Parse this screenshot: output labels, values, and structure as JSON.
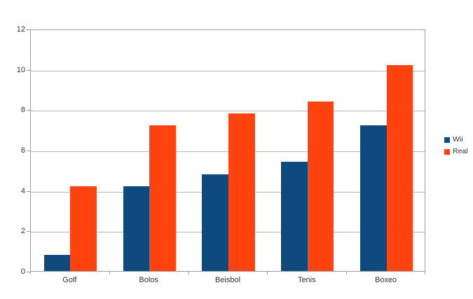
{
  "chart_data": {
    "type": "bar",
    "title": "",
    "xlabel": "",
    "ylabel": "",
    "categories": [
      "Golf",
      "Bolos",
      "Beisbol",
      "Tenis",
      "Boxeo"
    ],
    "series": [
      {
        "name": "Wii",
        "color": "#0f4a7f",
        "values": [
          0.8,
          4.2,
          4.8,
          5.4,
          7.2
        ]
      },
      {
        "name": "Real",
        "color": "#ff420e",
        "values": [
          4.2,
          7.2,
          7.8,
          8.4,
          10.2
        ]
      }
    ],
    "ylim": [
      0,
      12
    ],
    "ytick_step": 2,
    "ytick_labels": [
      "0",
      "2",
      "4",
      "6",
      "8",
      "10",
      "12"
    ],
    "grid": true,
    "legend_position": "right"
  },
  "palette": {
    "background": "#ffffff",
    "gridline": "#b6b6b6",
    "axis_border": "#9c9c9c",
    "text": "#333333",
    "series_wii": "#0f4a7f",
    "series_real": "#ff420e"
  }
}
